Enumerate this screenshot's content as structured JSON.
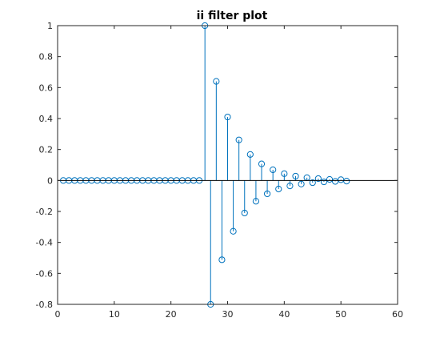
{
  "colors": {
    "series": "#0072bd",
    "axes": "#262626",
    "background": "#ffffff"
  },
  "chart_data": {
    "type": "stem",
    "title": "ii filter plot",
    "xlabel": "",
    "ylabel": "",
    "xlim": [
      0,
      60
    ],
    "ylim": [
      -0.8,
      1
    ],
    "xticks": [
      0,
      10,
      20,
      30,
      40,
      50,
      60
    ],
    "yticks": [
      -0.8,
      -0.6,
      -0.4,
      -0.2,
      0,
      0.2,
      0.4,
      0.6,
      0.8,
      1
    ],
    "xtick_labels": [
      "0",
      "10",
      "20",
      "30",
      "40",
      "50",
      "60"
    ],
    "ytick_labels": [
      "-0.8",
      "-0.6",
      "-0.4",
      "-0.2",
      "0",
      "0.2",
      "0.4",
      "0.6",
      "0.8",
      "1"
    ],
    "grid": false,
    "marker": "circle",
    "baseline": 0,
    "series": [
      {
        "x": [
          1,
          2,
          3,
          4,
          5,
          6,
          7,
          8,
          9,
          10,
          11,
          12,
          13,
          14,
          15,
          16,
          17,
          18,
          19,
          20,
          21,
          22,
          23,
          24,
          25,
          26,
          27,
          28,
          29,
          30,
          31,
          32,
          33,
          34,
          35,
          36,
          37,
          38,
          39,
          40,
          41,
          42,
          43,
          44,
          45,
          46,
          47,
          48,
          49,
          50,
          51
        ],
        "y": [
          0,
          0,
          0,
          0,
          0,
          0,
          0,
          0,
          0,
          0,
          0,
          0,
          0,
          0,
          0,
          0,
          0,
          0,
          0,
          0,
          0,
          0,
          0,
          0,
          0,
          1,
          -0.8,
          0.64,
          -0.512,
          0.41,
          -0.328,
          0.262,
          -0.21,
          0.168,
          -0.134,
          0.107,
          -0.086,
          0.069,
          -0.055,
          0.044,
          -0.035,
          0.028,
          -0.023,
          0.018,
          -0.014,
          0.012,
          -0.009,
          0.007,
          -0.006,
          0.005,
          -0.004
        ]
      }
    ]
  }
}
